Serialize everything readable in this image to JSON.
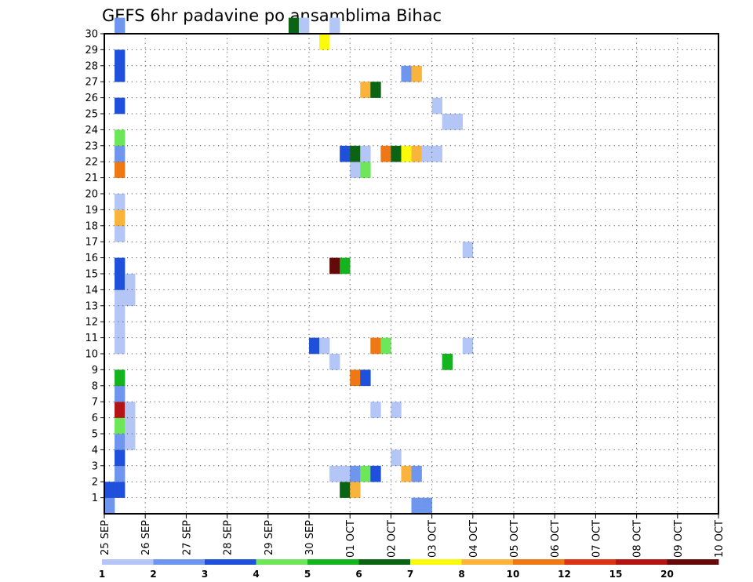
{
  "chart_data": {
    "type": "heatmap",
    "title": "GEFS 6hr padavine po ansamblima Bihac",
    "xlabel": "",
    "ylabel": "",
    "y_ticks": [
      "1",
      "2",
      "3",
      "4",
      "5",
      "6",
      "7",
      "8",
      "9",
      "10",
      "11",
      "12",
      "13",
      "14",
      "15",
      "16",
      "17",
      "18",
      "19",
      "20",
      "21",
      "22",
      "23",
      "24",
      "25",
      "26",
      "27",
      "28",
      "29",
      "30"
    ],
    "x_ticks": [
      "25 SEP",
      "26 SEP",
      "27 SEP",
      "28 SEP",
      "29 SEP",
      "30 SEP",
      "01 OCT",
      "02 OCT",
      "03 OCT",
      "04 OCT",
      "05 OCT",
      "06 OCT",
      "07 OCT",
      "08 OCT",
      "09 OCT",
      "10 OCT"
    ],
    "x_unit": "6-hour step from 25 SEP 00Z",
    "grid": true,
    "colorbar": {
      "labels": [
        "1",
        "2",
        "3",
        "4",
        "5",
        "6",
        "7",
        "8",
        "10",
        "12",
        "15",
        "20"
      ],
      "colors": [
        "#b4c6f6",
        "#6e96ee",
        "#1e50dc",
        "#6ee65a",
        "#14b41e",
        "#0a6414",
        "#fafa0a",
        "#fab43c",
        "#f07814",
        "#dc3214",
        "#b41414",
        "#640a0a"
      ]
    },
    "cells": [
      {
        "member": 0,
        "step": 0,
        "level": 2
      },
      {
        "member": 0,
        "step": 30,
        "level": 2
      },
      {
        "member": 0,
        "step": 31,
        "level": 2
      },
      {
        "member": 1,
        "step": 0,
        "level": 3
      },
      {
        "member": 1,
        "step": 1,
        "level": 3
      },
      {
        "member": 1,
        "step": 23,
        "level": 6
      },
      {
        "member": 1,
        "step": 24,
        "level": 8
      },
      {
        "member": 2,
        "step": 1,
        "level": 2
      },
      {
        "member": 2,
        "step": 22,
        "level": 1
      },
      {
        "member": 2,
        "step": 23,
        "level": 1
      },
      {
        "member": 2,
        "step": 24,
        "level": 2
      },
      {
        "member": 2,
        "step": 25,
        "level": 4
      },
      {
        "member": 2,
        "step": 26,
        "level": 3
      },
      {
        "member": 2,
        "step": 29,
        "level": 8
      },
      {
        "member": 2,
        "step": 30,
        "level": 2
      },
      {
        "member": 3,
        "step": 1,
        "level": 3
      },
      {
        "member": 3,
        "step": 28,
        "level": 1
      },
      {
        "member": 4,
        "step": 1,
        "level": 2
      },
      {
        "member": 4,
        "step": 2,
        "level": 1
      },
      {
        "member": 5,
        "step": 1,
        "level": 4
      },
      {
        "member": 5,
        "step": 2,
        "level": 1
      },
      {
        "member": 6,
        "step": 1,
        "level": 11
      },
      {
        "member": 6,
        "step": 2,
        "level": 1
      },
      {
        "member": 6,
        "step": 26,
        "level": 1
      },
      {
        "member": 6,
        "step": 28,
        "level": 1
      },
      {
        "member": 7,
        "step": 1,
        "level": 2
      },
      {
        "member": 8,
        "step": 1,
        "level": 5
      },
      {
        "member": 8,
        "step": 24,
        "level": 9
      },
      {
        "member": 8,
        "step": 25,
        "level": 3
      },
      {
        "member": 9,
        "step": 22,
        "level": 1
      },
      {
        "member": 9,
        "step": 33,
        "level": 5
      },
      {
        "member": 10,
        "step": 1,
        "level": 1
      },
      {
        "member": 10,
        "step": 20,
        "level": 3
      },
      {
        "member": 10,
        "step": 21,
        "level": 1
      },
      {
        "member": 10,
        "step": 26,
        "level": 9
      },
      {
        "member": 10,
        "step": 27,
        "level": 4
      },
      {
        "member": 10,
        "step": 35,
        "level": 1
      },
      {
        "member": 11,
        "step": 1,
        "level": 1
      },
      {
        "member": 12,
        "step": 1,
        "level": 1
      },
      {
        "member": 13,
        "step": 1,
        "level": 1
      },
      {
        "member": 13,
        "step": 2,
        "level": 1
      },
      {
        "member": 14,
        "step": 1,
        "level": 3
      },
      {
        "member": 14,
        "step": 2,
        "level": 1
      },
      {
        "member": 15,
        "step": 1,
        "level": 3
      },
      {
        "member": 15,
        "step": 22,
        "level": 12
      },
      {
        "member": 15,
        "step": 23,
        "level": 5
      },
      {
        "member": 16,
        "step": 35,
        "level": 1
      },
      {
        "member": 17,
        "step": 1,
        "level": 1
      },
      {
        "member": 18,
        "step": 1,
        "level": 8
      },
      {
        "member": 19,
        "step": 1,
        "level": 1
      },
      {
        "member": 21,
        "step": 1,
        "level": 9
      },
      {
        "member": 21,
        "step": 24,
        "level": 1
      },
      {
        "member": 21,
        "step": 25,
        "level": 4
      },
      {
        "member": 22,
        "step": 1,
        "level": 2
      },
      {
        "member": 22,
        "step": 23,
        "level": 3
      },
      {
        "member": 22,
        "step": 24,
        "level": 6
      },
      {
        "member": 22,
        "step": 25,
        "level": 1
      },
      {
        "member": 22,
        "step": 27,
        "level": 9
      },
      {
        "member": 22,
        "step": 28,
        "level": 6
      },
      {
        "member": 22,
        "step": 29,
        "level": 7
      },
      {
        "member": 22,
        "step": 30,
        "level": 8
      },
      {
        "member": 22,
        "step": 31,
        "level": 1
      },
      {
        "member": 22,
        "step": 32,
        "level": 1
      },
      {
        "member": 23,
        "step": 1,
        "level": 4
      },
      {
        "member": 24,
        "step": 33,
        "level": 1
      },
      {
        "member": 24,
        "step": 34,
        "level": 1
      },
      {
        "member": 25,
        "step": 1,
        "level": 3
      },
      {
        "member": 25,
        "step": 32,
        "level": 1
      },
      {
        "member": 26,
        "step": 25,
        "level": 8
      },
      {
        "member": 26,
        "step": 26,
        "level": 6
      },
      {
        "member": 27,
        "step": 1,
        "level": 3
      },
      {
        "member": 27,
        "step": 29,
        "level": 2
      },
      {
        "member": 27,
        "step": 30,
        "level": 8
      },
      {
        "member": 28,
        "step": 1,
        "level": 3
      },
      {
        "member": 29,
        "step": 21,
        "level": 7
      },
      {
        "member": 30,
        "step": 1,
        "level": 2
      },
      {
        "member": 30,
        "step": 18,
        "level": 6
      },
      {
        "member": 30,
        "step": 19,
        "level": 1
      },
      {
        "member": 30,
        "step": 22,
        "level": 1
      }
    ]
  }
}
